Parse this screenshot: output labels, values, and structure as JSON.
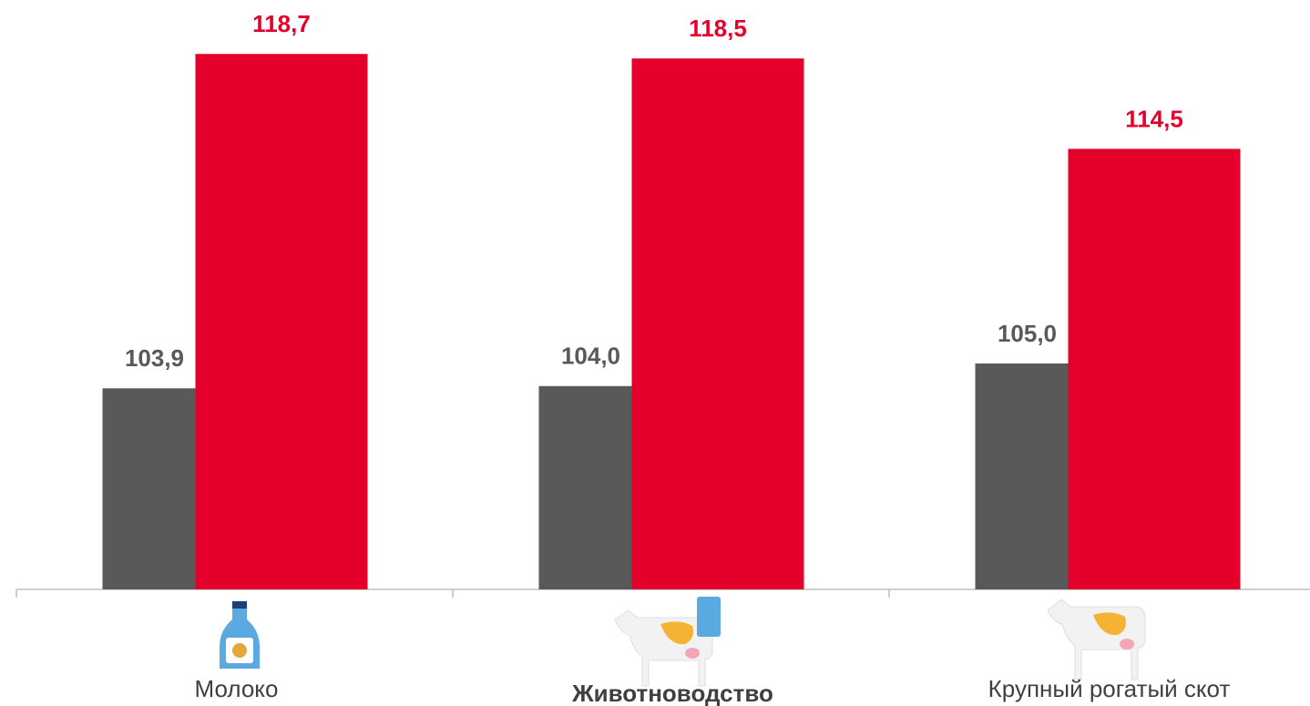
{
  "chart_data": {
    "type": "bar",
    "categories": [
      "Молоко",
      "Животноводство",
      "Крупный рогатый скот"
    ],
    "series": [
      {
        "color": "#595959",
        "values": [
          103.9,
          104.0,
          105.0
        ],
        "value_labels": [
          "103,9",
          "104,0",
          "105,0"
        ]
      },
      {
        "color": "#e4002b",
        "values": [
          118.7,
          118.5,
          114.5
        ],
        "value_labels": [
          "118,7",
          "118,5",
          "114,5"
        ]
      }
    ],
    "ylim": [
      95,
      120
    ]
  }
}
